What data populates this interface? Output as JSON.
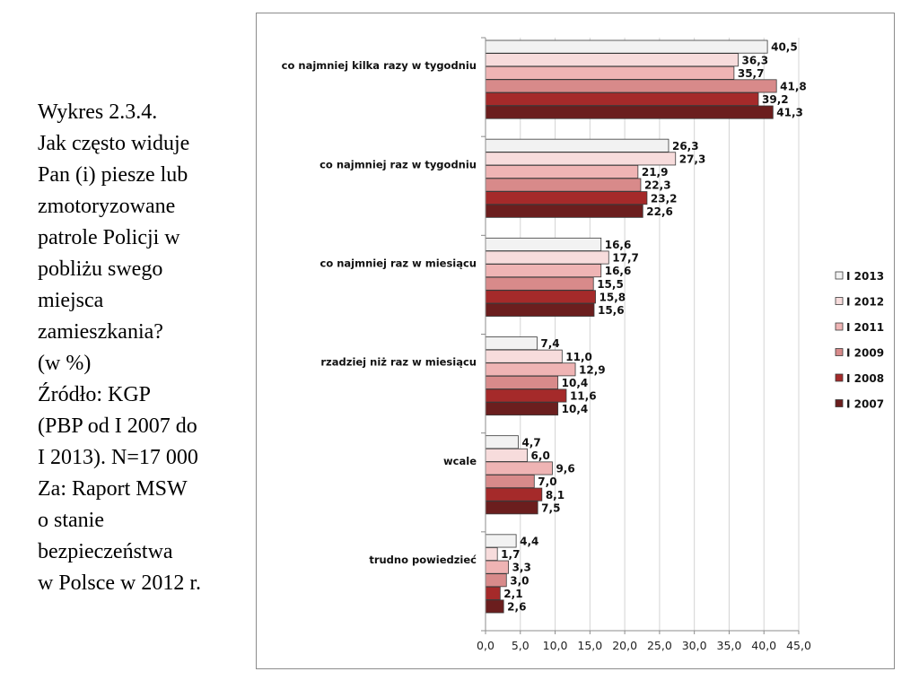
{
  "caption": {
    "lines": [
      "Wykres 2.3.4.",
      "Jak często widuje",
      "Pan (i) piesze lub",
      "zmotoryzowane",
      "patrole Policji w",
      "pobliżu swego",
      "miejsca",
      "zamieszkania?",
      "(w %)",
      " Źródło: KGP",
      "(PBP od I 2007 do",
      "I 2013). N=17 000",
      "Za: Raport MSW",
      "o stanie",
      "bezpieczeństwa",
      "w Polsce w 2012 r."
    ]
  },
  "chart_data": {
    "type": "bar",
    "orientation": "horizontal",
    "categories": [
      "co najmniej kilka razy w tygodniu",
      "co najmniej raz w tygodniu",
      "co najmniej raz w miesiącu",
      "rzadziej niż raz w miesiącu",
      "wcale",
      "trudno powiedzieć"
    ],
    "series": [
      {
        "name": "I 2013",
        "color": "#f2f2f2",
        "values": [
          40.5,
          26.3,
          16.6,
          7.4,
          4.7,
          4.4
        ]
      },
      {
        "name": "I 2012",
        "color": "#f7dcdc",
        "values": [
          36.3,
          27.3,
          17.7,
          11.0,
          6.0,
          1.7
        ]
      },
      {
        "name": "I 2011",
        "color": "#efb4b4",
        "values": [
          35.7,
          21.9,
          16.6,
          12.9,
          9.6,
          3.3
        ]
      },
      {
        "name": "I 2009",
        "color": "#d88a8a",
        "values": [
          41.8,
          22.3,
          15.5,
          10.4,
          7.0,
          3.0
        ]
      },
      {
        "name": "I 2008",
        "color": "#a52a2a",
        "values": [
          39.2,
          23.2,
          15.8,
          11.6,
          8.1,
          2.1
        ]
      },
      {
        "name": "I 2007",
        "color": "#6b1e1e",
        "values": [
          41.3,
          22.6,
          15.6,
          10.4,
          7.5,
          2.6
        ]
      }
    ],
    "value_labels": [
      [
        "40,5",
        "36,3",
        "35,7",
        "41,8",
        "39,2",
        "41,3"
      ],
      [
        "26,3",
        "27,3",
        "21,9",
        "22,3",
        "23,2",
        "22,6"
      ],
      [
        "16,6",
        "17,7",
        "16,6",
        "15,5",
        "15,8",
        "15,6"
      ],
      [
        "7,4",
        "11,0",
        "12,9",
        "10,4",
        "11,6",
        "10,4"
      ],
      [
        "4,7",
        "6,0",
        "9,6",
        "7,0",
        "8,1",
        "7,5"
      ],
      [
        "4,4",
        "1,7",
        "3,3",
        "3,0",
        "2,1",
        "2,6"
      ]
    ],
    "x_ticks": [
      0,
      5,
      10,
      15,
      20,
      25,
      30,
      35,
      40,
      45
    ],
    "x_tick_labels": [
      "0,0",
      "5,0",
      "10,0",
      "15,0",
      "20,0",
      "25,0",
      "30,0",
      "35,0",
      "40,0",
      "45,0"
    ],
    "xlim": [
      0,
      45
    ],
    "grid": true,
    "legend_position": "right",
    "bar_border": "#3a3a3a",
    "grid_color": "#d4d4d4",
    "title": "",
    "xlabel": "",
    "ylabel": ""
  }
}
